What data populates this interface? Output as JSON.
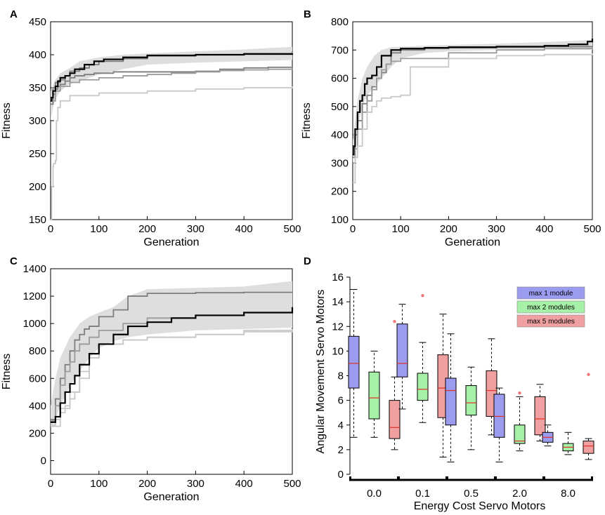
{
  "colors": {
    "band": "#dedede",
    "mean": "#000000",
    "run_dark": "#7d7d7d",
    "run_mid": "#9b9b9b",
    "run_light": "#c8c8c8",
    "box_1": "#9b9bf0",
    "box_2": "#a7f0a7",
    "box_5": "#f0a0a0",
    "median": "#e0302a"
  },
  "chart_data": [
    {
      "panel": "A",
      "type": "line",
      "xlabel": "Generation",
      "ylabel": "Fitness",
      "xlim": [
        0,
        500
      ],
      "ylim": [
        150,
        450
      ],
      "xticks": [
        "0",
        "100",
        "200",
        "300",
        "400",
        "500"
      ],
      "yticks": [
        "150",
        "200",
        "250",
        "300",
        "350",
        "400",
        "450"
      ],
      "band": {
        "x": [
          0,
          8,
          20,
          40,
          60,
          100,
          150,
          200,
          300,
          400,
          500
        ],
        "lower": [
          300,
          330,
          345,
          355,
          360,
          370,
          378,
          385,
          388,
          390,
          392
        ],
        "upper": [
          345,
          360,
          372,
          380,
          390,
          396,
          400,
          402,
          405,
          408,
          412
        ]
      },
      "series": [
        {
          "name": "mean",
          "role": "mean",
          "x": [
            0,
            2,
            5,
            10,
            15,
            20,
            30,
            40,
            50,
            70,
            90,
            110,
            150,
            200,
            300,
            400,
            500
          ],
          "y": [
            330,
            335,
            345,
            352,
            360,
            365,
            368,
            372,
            378,
            385,
            390,
            393,
            396,
            399,
            400,
            401,
            402
          ]
        },
        {
          "name": "run 1",
          "role": "dark",
          "x": [
            0,
            5,
            10,
            20,
            30,
            40,
            60,
            80,
            100,
            150,
            200,
            300,
            400,
            500
          ],
          "y": [
            335,
            350,
            358,
            362,
            368,
            375,
            380,
            385,
            390,
            394,
            398,
            400,
            402,
            405
          ]
        },
        {
          "name": "run 2",
          "role": "dark",
          "x": [
            0,
            5,
            10,
            15,
            20,
            30,
            40,
            50,
            70,
            90,
            130,
            300,
            350,
            400,
            450,
            500
          ],
          "y": [
            325,
            340,
            348,
            352,
            355,
            360,
            365,
            368,
            370,
            372,
            374,
            375,
            378,
            380,
            381,
            383
          ]
        },
        {
          "name": "run 3",
          "role": "mid",
          "x": [
            0,
            10,
            20,
            40,
            60,
            100,
            150,
            200,
            250,
            300,
            350,
            400,
            450,
            500
          ],
          "y": [
            330,
            345,
            352,
            358,
            362,
            365,
            368,
            370,
            372,
            374,
            376,
            377,
            378,
            379
          ]
        },
        {
          "name": "run 4",
          "role": "light",
          "x": [
            0,
            2,
            5,
            6,
            10,
            12,
            15,
            20,
            40,
            100,
            200,
            300,
            400,
            500
          ],
          "y": [
            150,
            200,
            230,
            235,
            240,
            300,
            320,
            330,
            338,
            342,
            345,
            348,
            350,
            352
          ]
        }
      ]
    },
    {
      "panel": "B",
      "type": "line",
      "xlabel": "Generation",
      "ylabel": "Fitness",
      "xlim": [
        0,
        500
      ],
      "ylim": [
        100,
        800
      ],
      "xticks": [
        "0",
        "100",
        "200",
        "300",
        "400",
        "500"
      ],
      "yticks": [
        "100",
        "200",
        "300",
        "400",
        "500",
        "600",
        "700",
        "800"
      ],
      "band": {
        "x": [
          0,
          10,
          20,
          30,
          45,
          60,
          80,
          100,
          150,
          200,
          300,
          400,
          500
        ],
        "lower": [
          300,
          420,
          500,
          540,
          570,
          600,
          640,
          670,
          690,
          695,
          700,
          702,
          700
        ],
        "upper": [
          380,
          520,
          600,
          640,
          680,
          700,
          710,
          712,
          715,
          718,
          722,
          728,
          735
        ]
      },
      "series": [
        {
          "name": "mean",
          "role": "mean",
          "x": [
            0,
            2,
            5,
            10,
            15,
            20,
            25,
            30,
            40,
            50,
            60,
            80,
            100,
            150,
            200,
            300,
            400,
            450,
            490,
            500
          ],
          "y": [
            330,
            360,
            420,
            480,
            520,
            540,
            580,
            600,
            610,
            640,
            680,
            700,
            705,
            708,
            710,
            712,
            715,
            720,
            730,
            740
          ]
        },
        {
          "name": "run 1",
          "role": "dark",
          "x": [
            0,
            5,
            10,
            20,
            30,
            40,
            50,
            60,
            70,
            80,
            100,
            150,
            200,
            300,
            400,
            500
          ],
          "y": [
            320,
            400,
            450,
            510,
            540,
            570,
            600,
            620,
            650,
            690,
            700,
            705,
            708,
            710,
            712,
            713
          ]
        },
        {
          "name": "run 2",
          "role": "mid",
          "x": [
            0,
            5,
            10,
            20,
            30,
            40,
            50,
            60,
            70,
            80,
            100,
            200,
            300,
            400,
            500
          ],
          "y": [
            300,
            350,
            420,
            480,
            520,
            560,
            600,
            630,
            650,
            660,
            670,
            690,
            700,
            705,
            710
          ]
        },
        {
          "name": "run 3",
          "role": "light",
          "x": [
            0,
            5,
            10,
            20,
            30,
            40,
            50,
            60,
            80,
            100,
            120,
            200,
            300,
            400,
            500
          ],
          "y": [
            230,
            320,
            360,
            420,
            480,
            500,
            520,
            530,
            535,
            540,
            640,
            670,
            680,
            684,
            688
          ]
        }
      ]
    },
    {
      "panel": "C",
      "type": "line",
      "xlabel": "Generation",
      "ylabel": "Fitness",
      "xlim": [
        0,
        500
      ],
      "ylim": [
        -100,
        1400
      ],
      "xticks": [
        "0",
        "100",
        "200",
        "300",
        "400",
        "500"
      ],
      "yticks": [
        "0",
        "200",
        "400",
        "600",
        "800",
        "1000",
        "1200",
        "1400"
      ],
      "band": {
        "x": [
          0,
          10,
          20,
          40,
          60,
          80,
          100,
          130,
          160,
          200,
          300,
          400,
          500
        ],
        "lower": [
          250,
          300,
          400,
          550,
          650,
          750,
          820,
          870,
          900,
          920,
          950,
          960,
          970
        ],
        "upper": [
          400,
          600,
          750,
          900,
          1000,
          1050,
          1080,
          1120,
          1200,
          1250,
          1260,
          1270,
          1310
        ]
      },
      "series": [
        {
          "name": "mean",
          "role": "mean",
          "x": [
            0,
            10,
            20,
            30,
            40,
            50,
            60,
            80,
            100,
            130,
            160,
            200,
            250,
            300,
            400,
            500
          ],
          "y": [
            280,
            320,
            420,
            500,
            560,
            620,
            700,
            780,
            850,
            920,
            980,
            1010,
            1040,
            1060,
            1080,
            1120
          ]
        },
        {
          "name": "run 1",
          "role": "dark",
          "x": [
            0,
            10,
            20,
            30,
            40,
            50,
            60,
            70,
            80,
            100,
            130,
            160,
            200,
            300,
            400,
            500
          ],
          "y": [
            300,
            450,
            600,
            700,
            800,
            880,
            920,
            960,
            980,
            1050,
            1100,
            1200,
            1220,
            1225,
            1228,
            1230
          ]
        },
        {
          "name": "run 2",
          "role": "mid",
          "x": [
            0,
            10,
            20,
            30,
            40,
            50,
            60,
            80,
            100,
            150,
            200,
            300,
            400,
            500
          ],
          "y": [
            290,
            400,
            550,
            650,
            720,
            800,
            850,
            900,
            950,
            1000,
            1040,
            1060,
            1080,
            1100
          ]
        },
        {
          "name": "run 3",
          "role": "light",
          "x": [
            0,
            10,
            20,
            30,
            40,
            50,
            60,
            80,
            100,
            150,
            200,
            300,
            400,
            500
          ],
          "y": [
            260,
            300,
            350,
            400,
            450,
            500,
            600,
            750,
            850,
            880,
            900,
            920,
            950,
            960
          ]
        },
        {
          "name": "run 4",
          "role": "light",
          "x": [
            0,
            20,
            40,
            60,
            80,
            100,
            150,
            200,
            300,
            400,
            500
          ],
          "y": [
            250,
            380,
            500,
            650,
            750,
            850,
            880,
            900,
            920,
            940,
            950
          ]
        }
      ]
    },
    {
      "panel": "D",
      "type": "box",
      "xlabel": "Energy Cost Servo Motors",
      "ylabel": "Angular Movement Servo Motors",
      "ylim": [
        0,
        16
      ],
      "yticks": [
        "0",
        "2",
        "4",
        "6",
        "8",
        "10",
        "12",
        "14",
        "16"
      ],
      "categories": [
        "0.0",
        "0.1",
        "0.5",
        "2.0",
        "8.0"
      ],
      "legend": [
        "max 1 module",
        "max 2 modules",
        "max 5 modules"
      ],
      "groups": [
        {
          "category": "0.0",
          "boxes": [
            {
              "series": "max 1 module",
              "min": 3.0,
              "q1": 7.0,
              "median": 9.0,
              "q3": 11.2,
              "max": 15.0,
              "outliers": []
            },
            {
              "series": "max 2 modules",
              "min": 3.0,
              "q1": 4.5,
              "median": 6.2,
              "q3": 8.3,
              "max": 10.0,
              "outliers": []
            },
            {
              "series": "max 5 modules",
              "min": 2.0,
              "q1": 2.9,
              "median": 3.8,
              "q3": 6.0,
              "max": 7.9,
              "outliers": [
                12.4
              ]
            }
          ]
        },
        {
          "category": "0.1",
          "boxes": [
            {
              "series": "max 1 module",
              "min": 5.3,
              "q1": 7.9,
              "median": 9.0,
              "q3": 12.2,
              "max": 13.8,
              "outliers": []
            },
            {
              "series": "max 2 modules",
              "min": 4.2,
              "q1": 6.0,
              "median": 6.9,
              "q3": 8.2,
              "max": 10.7,
              "outliers": [
                14.5
              ]
            },
            {
              "series": "max 5 modules",
              "min": 1.4,
              "q1": 4.6,
              "median": 7.0,
              "q3": 9.7,
              "max": 13.0,
              "outliers": []
            }
          ]
        },
        {
          "category": "0.5",
          "boxes": [
            {
              "series": "max 1 module",
              "min": 1.0,
              "q1": 4.0,
              "median": 6.8,
              "q3": 7.8,
              "max": 11.4,
              "outliers": []
            },
            {
              "series": "max 2 modules",
              "min": 2.0,
              "q1": 4.8,
              "median": 5.8,
              "q3": 7.2,
              "max": 8.7,
              "outliers": []
            },
            {
              "series": "max 5 modules",
              "min": 3.2,
              "q1": 4.7,
              "median": 6.8,
              "q3": 8.4,
              "max": 11.0,
              "outliers": []
            }
          ]
        },
        {
          "category": "2.0",
          "boxes": [
            {
              "series": "max 1 module",
              "min": 1.0,
              "q1": 3.0,
              "median": 4.7,
              "q3": 6.5,
              "max": 7.0,
              "outliers": []
            },
            {
              "series": "max 2 modules",
              "min": 1.9,
              "q1": 2.5,
              "median": 2.7,
              "q3": 4.0,
              "max": 6.3,
              "outliers": [
                6.6
              ]
            },
            {
              "series": "max 5 modules",
              "min": 2.7,
              "q1": 3.2,
              "median": 4.5,
              "q3": 6.3,
              "max": 7.3,
              "outliers": []
            }
          ]
        },
        {
          "category": "8.0",
          "boxes": [
            {
              "series": "max 1 module",
              "min": 2.3,
              "q1": 2.6,
              "median": 3.0,
              "q3": 3.4,
              "max": 4.0,
              "outliers": []
            },
            {
              "series": "max 2 modules",
              "min": 1.6,
              "q1": 1.9,
              "median": 2.2,
              "q3": 2.5,
              "max": 3.4,
              "outliers": []
            },
            {
              "series": "max 5 modules",
              "min": 1.2,
              "q1": 1.7,
              "median": 2.3,
              "q3": 2.7,
              "max": 2.9,
              "outliers": [
                8.1
              ]
            }
          ]
        }
      ]
    }
  ]
}
